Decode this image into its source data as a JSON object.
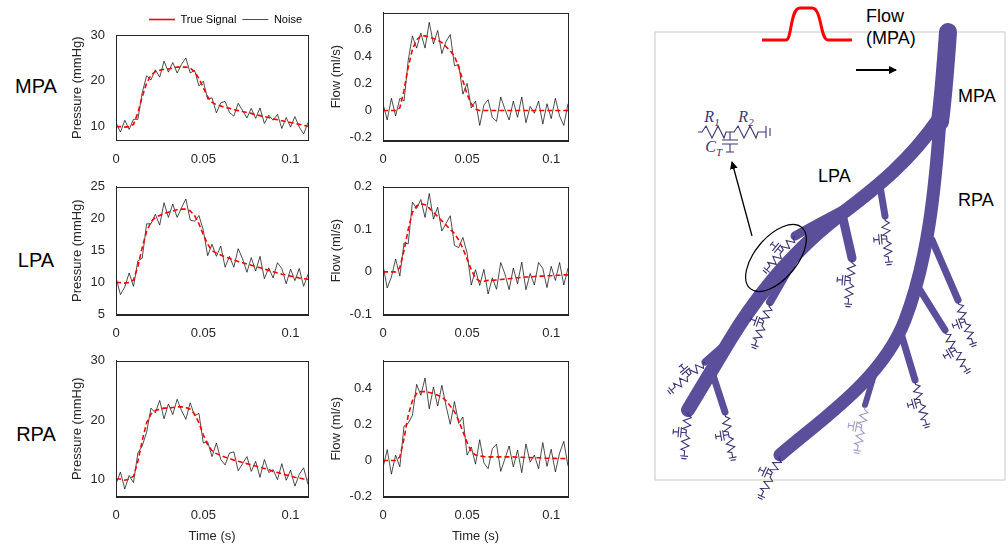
{
  "row_labels": [
    "MPA",
    "LPA",
    "RPA"
  ],
  "chart_data": [
    {
      "type": "line",
      "y_label": "Pressure (mmHg)",
      "x": [
        0,
        0.0025,
        0.005,
        0.0075,
        0.01,
        0.0125,
        0.015,
        0.0175,
        0.02,
        0.0225,
        0.025,
        0.0275,
        0.03,
        0.0325,
        0.035,
        0.0375,
        0.04,
        0.0425,
        0.045,
        0.0475,
        0.05,
        0.0525,
        0.055,
        0.0575,
        0.06,
        0.0625,
        0.065,
        0.0675,
        0.07,
        0.0725,
        0.075,
        0.0775,
        0.08,
        0.0825,
        0.085,
        0.0875,
        0.09,
        0.0925,
        0.095,
        0.0975,
        0.1,
        0.1025,
        0.105,
        0.1075,
        0.11
      ],
      "series": [
        {
          "name": "Noise",
          "color": "#000000",
          "line_style": "solid",
          "values": [
            10.8,
            8.8,
            11.4,
            9.4,
            11.6,
            11.6,
            17.4,
            21.1,
            20.2,
            22.4,
            20.8,
            24.3,
            21.9,
            24.0,
            21.7,
            23.6,
            25.0,
            21.7,
            22.3,
            18.9,
            19.9,
            16.0,
            16.3,
            13.0,
            15.2,
            15.5,
            13.1,
            12.3,
            15.1,
            13.5,
            11.9,
            14.0,
            11.8,
            14.1,
            10.7,
            12.5,
            11.4,
            12.7,
            9.6,
            12.0,
            9.9,
            12.2,
            9.9,
            8.4,
            10.9
          ]
        },
        {
          "name": "True Signal",
          "color": "#ff0000",
          "line_style": "dashed",
          "values": [
            10,
            10,
            9.9,
            10,
            10.5,
            13,
            16.5,
            19.5,
            21.2,
            22,
            22.3,
            22.5,
            22.6,
            22.8,
            23,
            23,
            23,
            22.8,
            22,
            20.5,
            18.5,
            16.5,
            15.3,
            14.8,
            14.5,
            14.2,
            14,
            13.7,
            13.5,
            13.3,
            13.1,
            12.9,
            12.6,
            12.4,
            12.2,
            12,
            11.7,
            11.5,
            11.3,
            11.1,
            10.9,
            10.7,
            10.5,
            10.3,
            10.1
          ]
        }
      ],
      "xlim": [
        0,
        0.11
      ],
      "xticks": [
        0,
        0.05,
        0.1
      ],
      "ylim": [
        7,
        30
      ],
      "yticks": [
        10,
        20,
        30
      ],
      "grid": false,
      "legend": "top right"
    },
    {
      "type": "line",
      "y_label": "Flow (ml/s)",
      "x": [
        0,
        0.0025,
        0.005,
        0.0075,
        0.01,
        0.0125,
        0.015,
        0.0175,
        0.02,
        0.0225,
        0.025,
        0.0275,
        0.03,
        0.0325,
        0.035,
        0.0375,
        0.04,
        0.0425,
        0.045,
        0.0475,
        0.05,
        0.0525,
        0.055,
        0.0575,
        0.06,
        0.0625,
        0.065,
        0.0675,
        0.07,
        0.0725,
        0.075,
        0.0775,
        0.08,
        0.0825,
        0.085,
        0.0875,
        0.09,
        0.0925,
        0.095,
        0.0975,
        0.1,
        0.1025,
        0.105,
        0.1075,
        0.11
      ],
      "series": [
        {
          "color": "#000000",
          "line_style": "solid",
          "values": [
            0.05,
            -0.07,
            0.09,
            -0.04,
            0.09,
            0.07,
            0.37,
            0.55,
            0.46,
            0.57,
            0.46,
            0.65,
            0.49,
            0.59,
            0.42,
            0.51,
            0.56,
            0.33,
            0.34,
            0.12,
            0.2,
            0.02,
            0.07,
            -0.11,
            0.04,
            0.08,
            -0.05,
            -0.08,
            0.1,
            0.01,
            -0.07,
            0.07,
            -0.05,
            0.1,
            -0.09,
            0.03,
            -0.02,
            0.07,
            -0.1,
            0.05,
            -0.06,
            0.09,
            -0.04,
            -0.11,
            0.05
          ]
        },
        {
          "color": "#ff0000",
          "line_style": "dashed",
          "values": [
            0,
            0,
            0,
            0,
            0.02,
            0.15,
            0.32,
            0.45,
            0.52,
            0.55,
            0.55,
            0.54,
            0.53,
            0.52,
            0.5,
            0.47,
            0.44,
            0.4,
            0.32,
            0.22,
            0.12,
            0.05,
            0.01,
            0,
            0,
            0,
            0,
            0,
            0,
            0,
            0,
            0,
            0,
            0,
            0,
            0,
            0,
            0,
            0,
            0,
            0,
            0,
            0,
            0,
            0
          ]
        }
      ],
      "xlim": [
        0,
        0.11
      ],
      "xticks": [
        0,
        0.05,
        0.1
      ],
      "ylim": [
        -0.22,
        0.72
      ],
      "yticks": [
        -0.2,
        0,
        0.2,
        0.4,
        0.6
      ],
      "grid": false
    },
    {
      "type": "line",
      "y_label": "Pressure (mmHg)",
      "x": [
        0,
        0.0025,
        0.005,
        0.0075,
        0.01,
        0.0125,
        0.015,
        0.0175,
        0.02,
        0.0225,
        0.025,
        0.0275,
        0.03,
        0.0325,
        0.035,
        0.0375,
        0.04,
        0.0425,
        0.045,
        0.0475,
        0.05,
        0.0525,
        0.055,
        0.0575,
        0.06,
        0.0625,
        0.065,
        0.0675,
        0.07,
        0.0725,
        0.075,
        0.0775,
        0.08,
        0.0825,
        0.085,
        0.0875,
        0.09,
        0.0925,
        0.095,
        0.0975,
        0.1,
        0.1025,
        0.105,
        0.1075,
        0.11
      ],
      "series": [
        {
          "color": "#000000",
          "line_style": "solid",
          "values": [
            10.8,
            8.1,
            9.3,
            11.5,
            9.4,
            13.4,
            13.8,
            19.2,
            19.2,
            20.7,
            19.0,
            22.5,
            20.2,
            22.3,
            20.2,
            21.7,
            23.1,
            19.8,
            19.6,
            20.5,
            18.2,
            14.2,
            16.0,
            14.1,
            15.7,
            12.4,
            14.1,
            12.4,
            15.3,
            13.7,
            11.6,
            13.9,
            11.8,
            14.1,
            10.6,
            12.3,
            10.7,
            13.1,
            12.2,
            9.8,
            12.1,
            10.3,
            12.2,
            9.4,
            11.3
          ]
        },
        {
          "color": "#ff0000",
          "line_style": "dashed",
          "values": [
            10,
            10,
            9.9,
            10,
            10.4,
            12.5,
            15.5,
            18,
            19.5,
            20.2,
            20.5,
            20.8,
            21,
            21.2,
            21.4,
            21.5,
            21.5,
            21.2,
            20.5,
            19.2,
            17.5,
            16,
            15,
            14.6,
            14.3,
            14,
            13.8,
            13.5,
            13.3,
            13.1,
            12.9,
            12.7,
            12.5,
            12.3,
            12.1,
            11.9,
            11.7,
            11.5,
            11.3,
            11.2,
            11,
            10.9,
            10.7,
            10.6,
            10.5
          ]
        }
      ],
      "xlim": [
        0,
        0.11
      ],
      "xticks": [
        0,
        0.05,
        0.1
      ],
      "ylim": [
        5,
        25
      ],
      "yticks": [
        5,
        10,
        15,
        20,
        25
      ],
      "grid": false
    },
    {
      "type": "line",
      "y_label": "Flow (ml/s)",
      "x": [
        0,
        0.0025,
        0.005,
        0.0075,
        0.01,
        0.0125,
        0.015,
        0.0175,
        0.02,
        0.0225,
        0.025,
        0.0275,
        0.03,
        0.0325,
        0.035,
        0.0375,
        0.04,
        0.0425,
        0.045,
        0.0475,
        0.05,
        0.0525,
        0.055,
        0.0575,
        0.06,
        0.0625,
        0.065,
        0.0675,
        0.07,
        0.0725,
        0.075,
        0.0775,
        0.08,
        0.0825,
        0.085,
        0.0875,
        0.09,
        0.0925,
        0.095,
        0.0975,
        0.1,
        0.1025,
        0.105,
        0.1075,
        0.11
      ],
      "series": [
        {
          "color": "#000000",
          "line_style": "solid",
          "values": [
            0.016,
            -0.038,
            -0.012,
            0.03,
            -0.01,
            0.068,
            0.066,
            0.164,
            0.149,
            0.17,
            0.128,
            0.184,
            0.124,
            0.152,
            0.096,
            0.114,
            0.132,
            0.062,
            0.057,
            0.081,
            0.044,
            -0.031,
            0.005,
            -0.032,
            0.006,
            -0.052,
            -0.014,
            -0.041,
            0.022,
            -0.005,
            -0.042,
            0.009,
            -0.028,
            0.023,
            -0.042,
            -0.004,
            -0.031,
            0.022,
            0.008,
            -0.037,
            0.013,
            -0.02,
            0.022,
            -0.031,
            0.009
          ]
        },
        {
          "color": "#ff0000",
          "line_style": "dashed",
          "values": [
            0,
            0,
            0,
            0,
            0.01,
            0.05,
            0.1,
            0.14,
            0.155,
            0.16,
            0.158,
            0.15,
            0.14,
            0.13,
            0.12,
            0.11,
            0.1,
            0.09,
            0.075,
            0.055,
            0.03,
            0.005,
            -0.015,
            -0.022,
            -0.022,
            -0.02,
            -0.02,
            -0.019,
            -0.018,
            -0.017,
            -0.016,
            -0.015,
            -0.014,
            -0.013,
            -0.012,
            -0.012,
            -0.011,
            -0.01,
            -0.01,
            -0.009,
            -0.009,
            -0.008,
            -0.008,
            -0.007,
            -0.007
          ]
        }
      ],
      "xlim": [
        0,
        0.11
      ],
      "xticks": [
        0,
        0.05,
        0.1
      ],
      "ylim": [
        -0.1,
        0.2
      ],
      "yticks": [
        -0.1,
        0,
        0.1,
        0.2
      ],
      "grid": false
    },
    {
      "type": "line",
      "x_label": "Time (s)",
      "y_label": "Pressure (mmHg)",
      "x": [
        0,
        0.0025,
        0.005,
        0.0075,
        0.01,
        0.0125,
        0.015,
        0.0175,
        0.02,
        0.0225,
        0.025,
        0.0275,
        0.03,
        0.0325,
        0.035,
        0.0375,
        0.04,
        0.0425,
        0.045,
        0.0475,
        0.05,
        0.0525,
        0.055,
        0.0575,
        0.06,
        0.0625,
        0.065,
        0.0675,
        0.07,
        0.0725,
        0.075,
        0.0775,
        0.08,
        0.0825,
        0.085,
        0.0875,
        0.09,
        0.0925,
        0.095,
        0.0975,
        0.1,
        0.1025,
        0.105,
        0.1075,
        0.11
      ],
      "series": [
        {
          "color": "#000000",
          "line_style": "solid",
          "values": [
            9.2,
            11.2,
            8.3,
            10.6,
            9.4,
            14.4,
            15.6,
            17.9,
            22,
            21.2,
            23.3,
            20.2,
            22.7,
            20.9,
            23.5,
            21.6,
            20.1,
            22.9,
            20.7,
            21.1,
            16.1,
            16.3,
            13.8,
            16.1,
            13.3,
            12.4,
            14.4,
            14.6,
            11.4,
            12.6,
            13.8,
            11.3,
            13.0,
            10.3,
            13.3,
            11.1,
            11.6,
            9.9,
            12.6,
            9.8,
            11.5,
            8.8,
            10.8,
            11.9,
            9.1
          ]
        },
        {
          "color": "#ff0000",
          "line_style": "dashed",
          "values": [
            10,
            10,
            9.8,
            10,
            10.5,
            13,
            16.5,
            19.5,
            21,
            21.6,
            21.8,
            22,
            22,
            22.1,
            22.2,
            22.2,
            22.1,
            21.8,
            21,
            19.5,
            17.5,
            15.8,
            14.8,
            14.3,
            14,
            13.7,
            13.5,
            13.2,
            13,
            12.8,
            12.6,
            12.4,
            12.2,
            12,
            11.8,
            11.6,
            11.3,
            11.1,
            10.9,
            10.7,
            10.5,
            10.3,
            10.2,
            10,
            9.9
          ]
        }
      ],
      "xlim": [
        0,
        0.11
      ],
      "xticks": [
        0,
        0.05,
        0.1
      ],
      "ylim": [
        7,
        30
      ],
      "yticks": [
        10,
        20,
        30
      ],
      "grid": false
    },
    {
      "type": "line",
      "x_label": "Time (s)",
      "y_label": "Flow (ml/s)",
      "x": [
        0,
        0.0025,
        0.005,
        0.0075,
        0.01,
        0.0125,
        0.015,
        0.0175,
        0.02,
        0.0225,
        0.025,
        0.0275,
        0.03,
        0.0325,
        0.035,
        0.0375,
        0.04,
        0.0425,
        0.045,
        0.0475,
        0.05,
        0.0525,
        0.055,
        0.0575,
        0.06,
        0.0625,
        0.065,
        0.0675,
        0.07,
        0.0725,
        0.075,
        0.0775,
        0.08,
        0.0825,
        0.085,
        0.0875,
        0.09,
        0.0925,
        0.095,
        0.0975,
        0.1,
        0.1025,
        0.105,
        0.1075,
        0.11
      ],
      "series": [
        {
          "color": "#000000",
          "line_style": "solid",
          "values": [
            -0.04,
            0.06,
            -0.075,
            0.03,
            -0.035,
            0.19,
            0.205,
            0.25,
            0.42,
            0.36,
            0.455,
            0.285,
            0.405,
            0.3,
            0.415,
            0.3,
            0.2,
            0.325,
            0.205,
            0.24,
            0.03,
            0.075,
            -0.02,
            0.115,
            -0.013,
            -0.045,
            0.065,
            0.09,
            -0.06,
            0.01,
            0.08,
            -0.035,
            0.058,
            -0.067,
            0.092,
            -0.009,
            0.03,
            -0.045,
            0.099,
            -0.032,
            0.062,
            -0.063,
            0.041,
            0.106,
            -0.03
          ]
        },
        {
          "color": "#ff0000",
          "line_style": "dashed",
          "values": [
            0,
            0,
            0,
            0,
            0.02,
            0.12,
            0.25,
            0.33,
            0.37,
            0.38,
            0.38,
            0.375,
            0.37,
            0.36,
            0.35,
            0.33,
            0.3,
            0.27,
            0.22,
            0.16,
            0.1,
            0.05,
            0.03,
            0.025,
            0.022,
            0.02,
            0.02,
            0.02,
            0.02,
            0.02,
            0.02,
            0.02,
            0.018,
            0.018,
            0.017,
            0.016,
            0.015,
            0.015,
            0.014,
            0.013,
            0.012,
            0.012,
            0.011,
            0.011,
            0.01
          ]
        }
      ],
      "xlim": [
        0,
        0.11
      ],
      "xticks": [
        0,
        0.05,
        0.1
      ],
      "ylim": [
        -0.2,
        0.55
      ],
      "yticks": [
        -0.2,
        0,
        0.2,
        0.4
      ],
      "grid": false
    }
  ],
  "diagram": {
    "inlet_label": "Flow (MPA)",
    "vessel_labels": {
      "mpa": "MPA",
      "lpa": "LPA",
      "rpa": "RPA"
    },
    "circuit": [
      {
        "base": "R",
        "sub": "1"
      },
      {
        "base": "R",
        "sub": "2"
      },
      {
        "base": "C",
        "sub": "T"
      }
    ]
  }
}
